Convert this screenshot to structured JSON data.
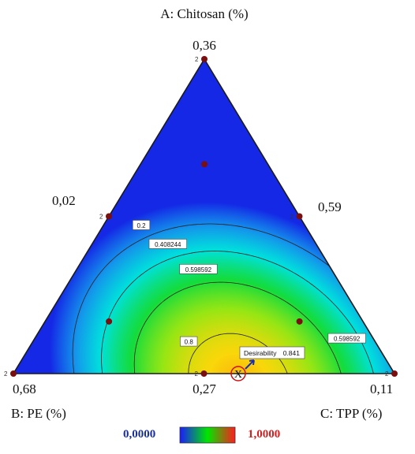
{
  "chart_data": {
    "type": "contour",
    "plot_kind": "ternary mixture design – desirability",
    "axes": {
      "A": {
        "label": "A: Chitosan (%)",
        "vertex_value": "0,36"
      },
      "B": {
        "label": "B: PE (%)",
        "vertex_value": "0,68"
      },
      "C": {
        "label": "C: TPP (%)",
        "vertex_value": "0,11"
      }
    },
    "edge_values": {
      "left": "0,02",
      "right": "0,59",
      "bottom": "0,27"
    },
    "contour_labels": [
      "0.2",
      "0.408244",
      "0.598592",
      "0.598592",
      "0.8"
    ],
    "design_points": [
      {
        "A": 1.0,
        "B": 0.0,
        "C": 0.0
      },
      {
        "A": 0.0,
        "B": 1.0,
        "C": 0.0
      },
      {
        "A": 0.0,
        "B": 0.0,
        "C": 1.0
      },
      {
        "A": 0.5,
        "B": 0.5,
        "C": 0.0
      },
      {
        "A": 0.5,
        "B": 0.0,
        "C": 0.5
      },
      {
        "A": 0.0,
        "B": 0.5,
        "C": 0.5
      },
      {
        "A": 0.333,
        "B": 0.333,
        "C": 0.333
      },
      {
        "A": 0.667,
        "B": 0.167,
        "C": 0.167
      },
      {
        "A": 0.167,
        "B": 0.667,
        "C": 0.167
      },
      {
        "A": 0.167,
        "B": 0.167,
        "C": 0.667
      }
    ],
    "replicate_label": "2",
    "optimum": {
      "marker": "X",
      "label": "Desirability",
      "value": "0.841",
      "A": 0.0,
      "B": 0.41,
      "C": 0.59
    },
    "colorbar": {
      "min": "0,0000",
      "max": "1,0000",
      "colors": [
        "#1c1cff",
        "#00e600",
        "#ff1c1c"
      ]
    }
  }
}
